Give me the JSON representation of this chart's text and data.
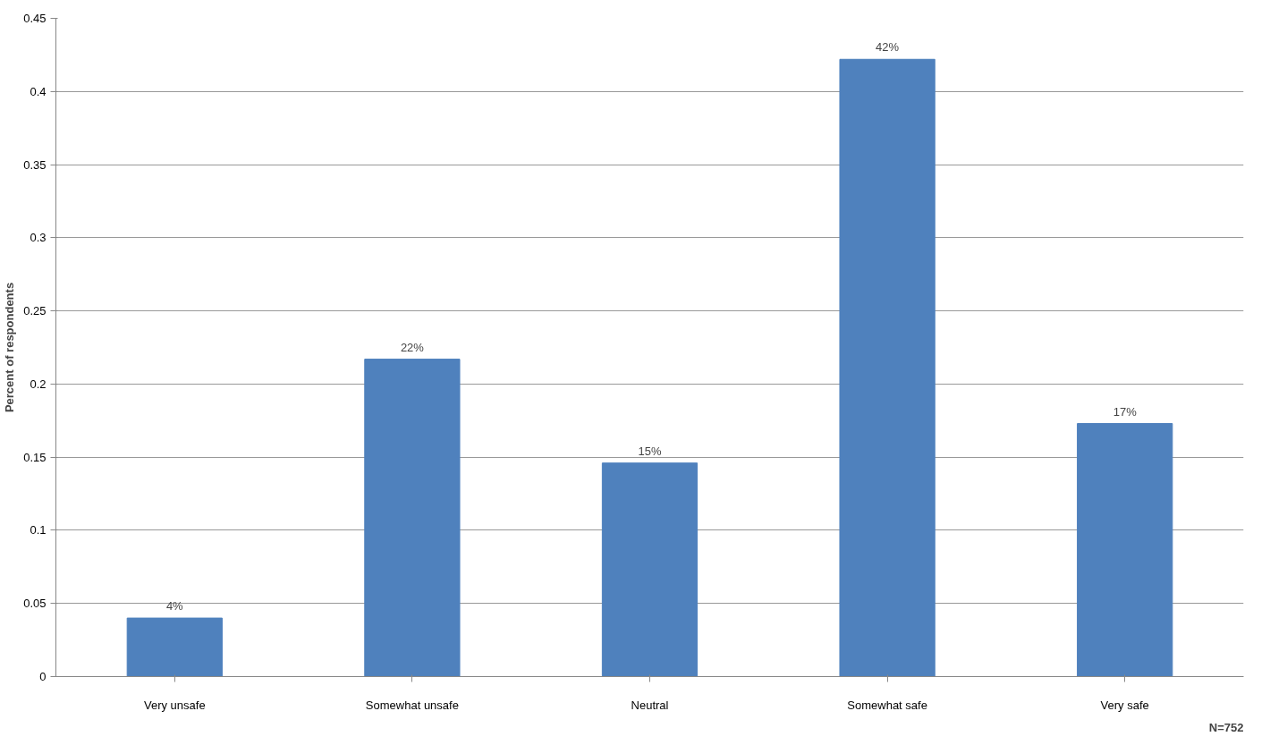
{
  "chart_data": {
    "type": "bar",
    "ylabel": "Percent of respondents",
    "categories": [
      "Very unsafe",
      "Somewhat unsafe",
      "Neutral",
      "Somewhat safe",
      "Very safe"
    ],
    "values": [
      0.04,
      0.217,
      0.146,
      0.422,
      0.173
    ],
    "value_labels": [
      "4%",
      "22%",
      "15%",
      "42%",
      "17%"
    ],
    "color": "#4f81bd",
    "ylim": [
      0,
      0.45
    ],
    "yticks": [
      0,
      0.05,
      0.1,
      0.15,
      0.2,
      0.25,
      0.3,
      0.35,
      0.4,
      0.45
    ],
    "grid": "y",
    "annotations": [
      "N=752"
    ]
  }
}
